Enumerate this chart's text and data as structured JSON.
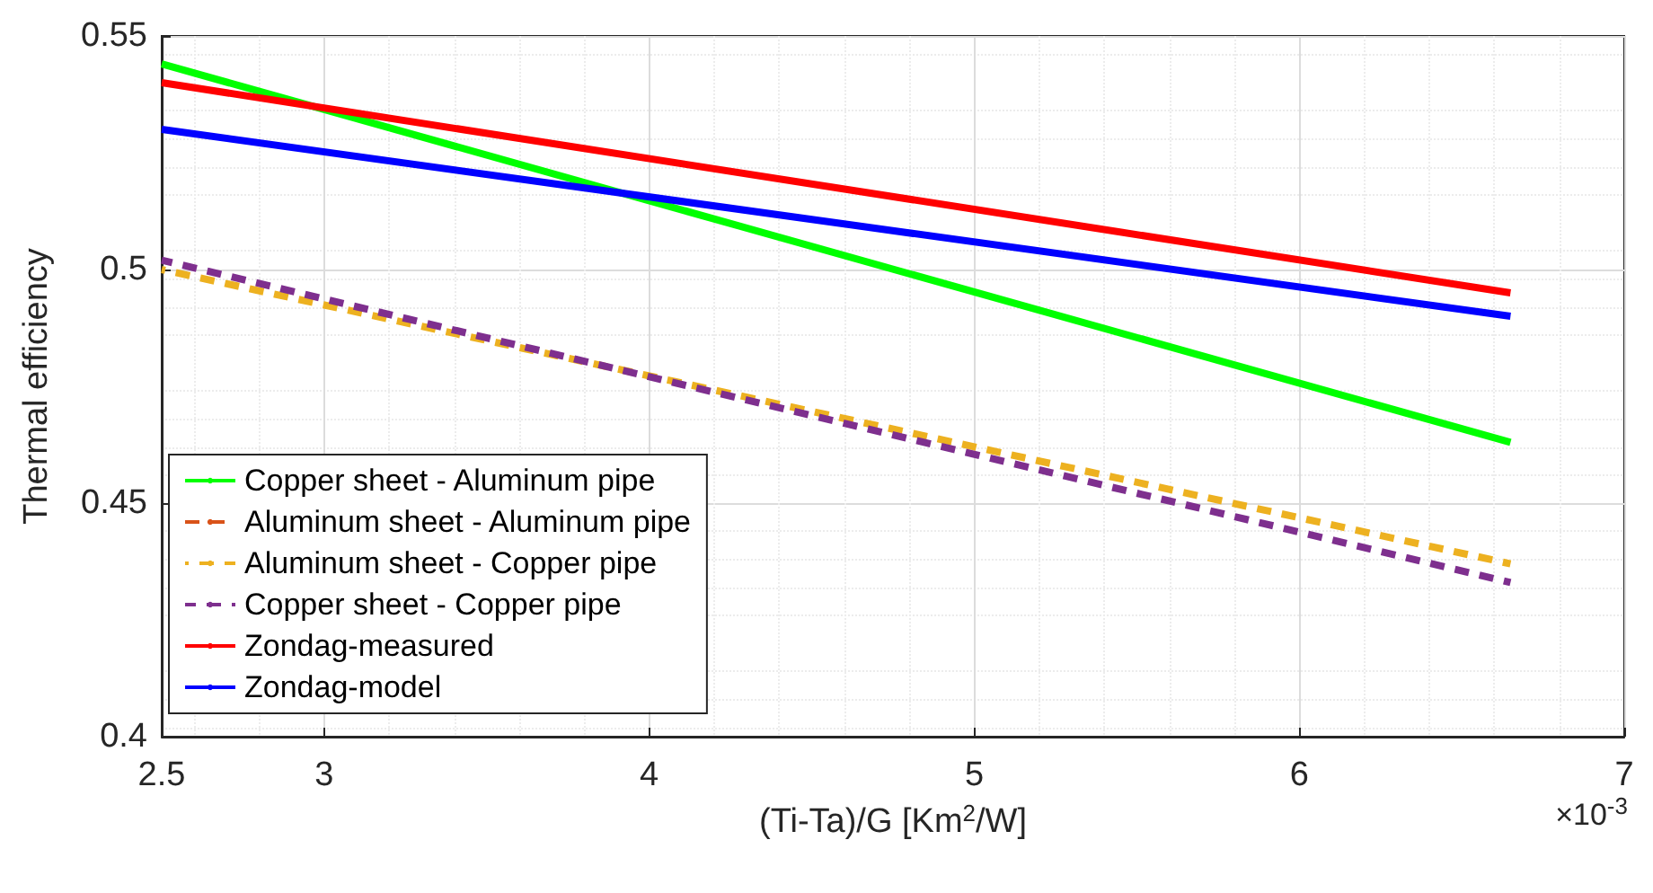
{
  "chart_data": {
    "type": "line",
    "xlabel": "(Ti-Ta)/G [Km$^{2}$/W]",
    "ylabel": "Thermal efficiency",
    "x": [
      2.5,
      6.65
    ],
    "series": [
      {
        "name": "Copper sheet - Aluminum pipe",
        "color": "#00ff00",
        "values": [
          0.544,
          0.463
        ],
        "line_style": "solid"
      },
      {
        "name": "Aluminum sheet - Aluminum pipe",
        "color": "#d95319",
        "values": [
          null,
          null
        ],
        "line_style": "dashed"
      },
      {
        "name": "Aluminum sheet - Copper pipe",
        "color": "#edb120",
        "values": [
          0.5,
          0.437
        ],
        "line_style": "dashed"
      },
      {
        "name": "Copper sheet - Copper pipe",
        "color": "#7e2f8e",
        "values": [
          0.502,
          0.433
        ],
        "line_style": "dashed"
      },
      {
        "name": "Zondag-measured",
        "color": "#ff0000",
        "values": [
          0.54,
          0.495
        ],
        "line_style": "solid"
      },
      {
        "name": "Zondag-model",
        "color": "#0000ff",
        "values": [
          0.53,
          0.49
        ],
        "line_style": "solid"
      }
    ],
    "xlim": [
      2.5,
      7
    ],
    "xticks": [
      2.5,
      3,
      4,
      5,
      6,
      7
    ],
    "ylim": [
      0.4,
      0.55
    ],
    "yticks": [
      0.4,
      0.45,
      0.5,
      0.55
    ],
    "grid": true,
    "legend": "bottom left",
    "marker": "none",
    "annotations": [
      "×10$^{-3}$"
    ]
  }
}
